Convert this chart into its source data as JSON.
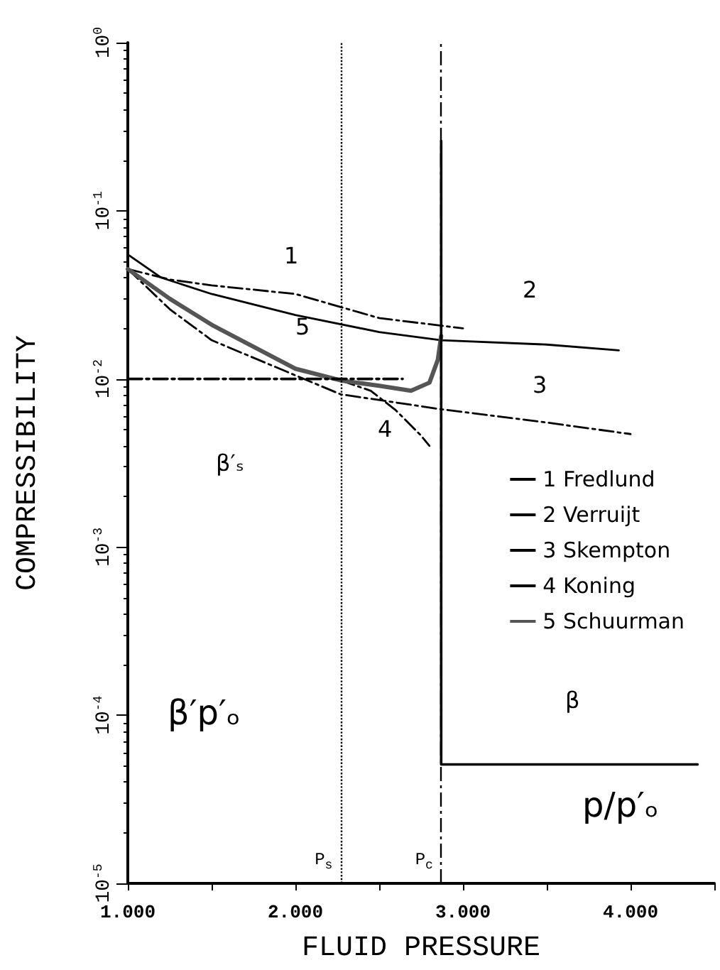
{
  "chart_data": {
    "type": "line",
    "xlabel": "FLUID PRESSURE",
    "ylabel": "COMPRESSIBILITY",
    "xlim": [
      1000,
      4500
    ],
    "xticks": [
      {
        "value": 1000,
        "label": "1.000"
      },
      {
        "value": 1500,
        "label": null
      },
      {
        "value": 2000,
        "label": "2.000"
      },
      {
        "value": 2500,
        "label": null
      },
      {
        "value": 3000,
        "label": "3.000"
      },
      {
        "value": 3500,
        "label": null
      },
      {
        "value": 4000,
        "label": "4.000"
      },
      {
        "value": 4500,
        "label": null
      }
    ],
    "ylim": [
      1e-05,
      1
    ],
    "yticks": [
      {
        "value": 1e-05,
        "label": "10$^{-5}$"
      },
      {
        "value": 0.0001,
        "label": "10$^{-4}$"
      },
      {
        "value": 0.001,
        "label": "10$^{-3}$"
      },
      {
        "value": 0.01,
        "label": "10$^{-2}$"
      },
      {
        "value": 0.1,
        "label": "10$^{-1}$"
      },
      {
        "value": 1,
        "label": "10$^{0}$"
      }
    ],
    "log": "y",
    "grid": false,
    "legend": "right",
    "marker": "none",
    "series": [
      {
        "name": "1 Fredlund",
        "color": "#000000",
        "line_style": "dashed",
        "x": [
          1000,
          1250,
          1500,
          2000,
          2500,
          3000
        ],
        "values": [
          0.045,
          0.039,
          0.036,
          0.032,
          0.023,
          0.02
        ]
      },
      {
        "name": "2 Verruijt",
        "color": "#000000",
        "line_style": "solid",
        "x": [
          1000,
          1200,
          1500,
          2000,
          2500,
          2870,
          3500,
          3930
        ],
        "values": [
          0.055,
          0.04,
          0.032,
          0.024,
          0.019,
          0.017,
          0.016,
          0.0148
        ]
      },
      {
        "name": "3 Skempton",
        "color": "#000000",
        "line_style": "dashed",
        "x": [
          1000,
          1250,
          1500,
          2000,
          2270,
          2870,
          3500,
          4000
        ],
        "values": [
          0.045,
          0.026,
          0.017,
          0.0105,
          0.0081,
          0.0066,
          0.0055,
          0.0047
        ]
      },
      {
        "name": "4 Koning",
        "color": "#000000",
        "line_style": "dashed",
        "x": [
          2270,
          2450,
          2600,
          2750,
          2800
        ],
        "values": [
          0.0098,
          0.0085,
          0.0065,
          0.0046,
          0.004
        ]
      },
      {
        "name": "5 Schuurman",
        "color": "#555555",
        "line_style": "solid",
        "x": [
          1000,
          1250,
          1500,
          2000,
          2270,
          2500,
          2690,
          2800,
          2850,
          2870
        ],
        "values": [
          0.045,
          0.03,
          0.021,
          0.0115,
          0.0098,
          0.0091,
          0.0085,
          0.0095,
          0.013,
          0.018
        ]
      },
      {
        "color": "#000000",
        "line_style": "solid",
        "x": [
          2870,
          2870,
          4400
        ],
        "values": [
          0.26,
          5.1e-05,
          5.1e-05
        ]
      },
      {
        "color": "#000000",
        "line_style": "dashed",
        "x": [
          1000,
          2640
        ],
        "values": [
          0.01,
          0.01
        ]
      }
    ],
    "ref_lines": [
      {
        "axis": "x",
        "value": 2270,
        "label": "P$_{s}$",
        "line_style": "dotted",
        "color": "#000000"
      },
      {
        "axis": "x",
        "value": 2870,
        "label": "P$_{c}$",
        "line_style": "dashed",
        "color": "#000000"
      }
    ],
    "annotations": [
      "1",
      "2",
      "3",
      "4",
      "5",
      "β′ₛ",
      "β",
      "β′p′ₒ",
      "p/p′ₒ"
    ]
  }
}
